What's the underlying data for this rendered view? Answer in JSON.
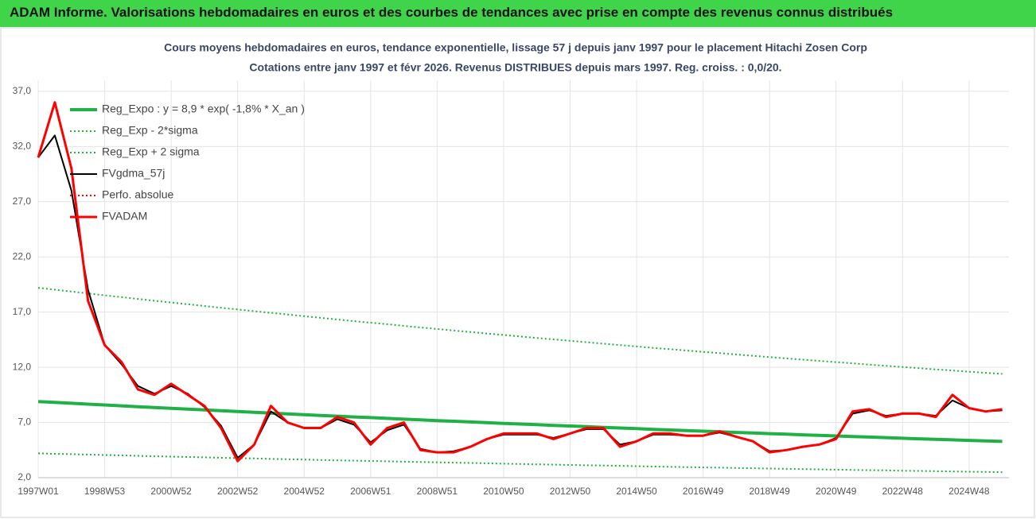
{
  "header": {
    "title": "ADAM Informe. Valorisations hebdomadaires en euros et des courbes de tendances avec prise en compte des revenus connus distribués"
  },
  "chart_data": {
    "type": "line",
    "title": "Cours moyens hebdomadaires en euros, tendance exponentielle, lissage 57 j depuis janv 1997  pour le placement Hitachi Zosen Corp",
    "subtitle": "Cotations entre janv 1997 et févr 2026. Revenus DISTRIBUES depuis mars 1997. Reg. croiss. : 0,0/20.",
    "x": [
      1997,
      1997.5,
      1998,
      1998.5,
      1999,
      1999.5,
      2000,
      2000.5,
      2001,
      2001.5,
      2002,
      2002.5,
      2003,
      2003.5,
      2004,
      2004.5,
      2005,
      2005.5,
      2006,
      2006.5,
      2007,
      2007.5,
      2008,
      2008.5,
      2009,
      2009.5,
      2010,
      2010.5,
      2011,
      2011.5,
      2012,
      2012.5,
      2013,
      2013.5,
      2014,
      2014.5,
      2015,
      2015.5,
      2016,
      2016.5,
      2017,
      2017.5,
      2018,
      2018.5,
      2019,
      2019.5,
      2020,
      2020.5,
      2021,
      2021.5,
      2022,
      2022.5,
      2023,
      2023.5,
      2024,
      2024.5,
      2025,
      2025.5,
      2026
    ],
    "xlim": [
      1997,
      2026.2
    ],
    "xticks": [
      {
        "value": 1997,
        "label": "1997W01"
      },
      {
        "value": 1999,
        "label": "1998W53"
      },
      {
        "value": 2001,
        "label": "2000W52"
      },
      {
        "value": 2003,
        "label": "2002W52"
      },
      {
        "value": 2005,
        "label": "2004W52"
      },
      {
        "value": 2007,
        "label": "2006W51"
      },
      {
        "value": 2009,
        "label": "2008W51"
      },
      {
        "value": 2011,
        "label": "2010W50"
      },
      {
        "value": 2013,
        "label": "2012W50"
      },
      {
        "value": 2015,
        "label": "2014W50"
      },
      {
        "value": 2017,
        "label": "2016W49"
      },
      {
        "value": 2019,
        "label": "2018W49"
      },
      {
        "value": 2021,
        "label": "2020W49"
      },
      {
        "value": 2023,
        "label": "2022W48"
      },
      {
        "value": 2025,
        "label": "2024W48"
      }
    ],
    "ylim": [
      2,
      38
    ],
    "yticks": [
      {
        "value": 2,
        "label": "2,0"
      },
      {
        "value": 7,
        "label": "7,0"
      },
      {
        "value": 12,
        "label": "12,0"
      },
      {
        "value": 17,
        "label": "17,0"
      },
      {
        "value": 22,
        "label": "22,0"
      },
      {
        "value": 27,
        "label": "27,0"
      },
      {
        "value": 32,
        "label": "32,0"
      },
      {
        "value": 37,
        "label": "37,0"
      }
    ],
    "grid": true,
    "legend": "upper left",
    "series": [
      {
        "name": "Reg_Expo : y = 8,9 * exp( -1,8% *  X_an )",
        "color": "#1fb145",
        "dash": "solid",
        "values": [
          8.9,
          8.82,
          8.74,
          8.66,
          8.59,
          8.51,
          8.43,
          8.36,
          8.28,
          8.21,
          8.14,
          8.06,
          7.99,
          7.92,
          7.85,
          7.78,
          7.71,
          7.64,
          7.57,
          7.5,
          7.44,
          7.37,
          7.3,
          7.24,
          7.17,
          7.11,
          7.05,
          6.98,
          6.92,
          6.86,
          6.8,
          6.74,
          6.68,
          6.62,
          6.56,
          6.5,
          6.44,
          6.38,
          6.32,
          6.27,
          6.21,
          6.16,
          6.1,
          6.05,
          5.99,
          5.94,
          5.88,
          5.83,
          5.78,
          5.73,
          5.68,
          5.63,
          5.57,
          5.52,
          5.48,
          5.43,
          5.38,
          5.33,
          5.28
        ]
      },
      {
        "name": "Reg_Exp - 2*sigma",
        "color": "#1fb145",
        "dash": "dotted",
        "values": [
          4.2,
          4.16,
          4.13,
          4.09,
          4.05,
          4.02,
          3.98,
          3.94,
          3.91,
          3.87,
          3.84,
          3.8,
          3.77,
          3.74,
          3.7,
          3.67,
          3.64,
          3.6,
          3.57,
          3.54,
          3.51,
          3.48,
          3.45,
          3.42,
          3.39,
          3.36,
          3.33,
          3.3,
          3.27,
          3.24,
          3.21,
          3.18,
          3.15,
          3.12,
          3.1,
          3.07,
          3.04,
          3.01,
          2.99,
          2.96,
          2.93,
          2.91,
          2.88,
          2.86,
          2.83,
          2.8,
          2.78,
          2.75,
          2.73,
          2.7,
          2.68,
          2.66,
          2.63,
          2.61,
          2.59,
          2.56,
          2.54,
          2.52,
          2.5
        ]
      },
      {
        "name": "Reg_Exp + 2 sigma",
        "color": "#1fb145",
        "dash": "dotted",
        "values": [
          19.2,
          19.03,
          18.86,
          18.69,
          18.52,
          18.36,
          18.19,
          18.03,
          17.87,
          17.71,
          17.55,
          17.39,
          17.24,
          17.08,
          16.93,
          16.78,
          16.63,
          16.48,
          16.33,
          16.18,
          16.04,
          15.9,
          15.75,
          15.61,
          15.47,
          15.33,
          15.2,
          15.06,
          14.93,
          14.79,
          14.66,
          14.53,
          14.4,
          14.27,
          14.14,
          14.01,
          13.89,
          13.76,
          13.64,
          13.52,
          13.4,
          13.28,
          13.16,
          13.04,
          12.92,
          12.81,
          12.69,
          12.58,
          12.47,
          12.36,
          12.24,
          12.13,
          12.03,
          11.92,
          11.81,
          11.71,
          11.6,
          11.5,
          11.4
        ]
      },
      {
        "name": "FVgdma_57j",
        "color": "#000000",
        "dash": "solid",
        "values": [
          31,
          33,
          28,
          19,
          14,
          12.3,
          10.3,
          9.6,
          10.3,
          9.6,
          8.4,
          6.7,
          3.8,
          5,
          8,
          7,
          6.5,
          6.5,
          7.3,
          6.8,
          5.2,
          6.3,
          6.8,
          4.6,
          4.3,
          4.4,
          4.8,
          5.5,
          5.9,
          5.9,
          5.9,
          5.6,
          6,
          6.4,
          6.4,
          5,
          5.3,
          5.9,
          5.9,
          5.8,
          5.8,
          6.1,
          5.7,
          5.3,
          4.4,
          4.5,
          4.8,
          5,
          5.6,
          7.8,
          8.1,
          7.6,
          7.8,
          7.8,
          7.6,
          9,
          8.3,
          8,
          8.1
        ]
      },
      {
        "name": "Perfo. absolue",
        "color": "#ff0000",
        "dash": "dotted",
        "values": [
          null,
          null,
          null,
          null,
          null,
          null,
          null,
          null,
          null,
          null,
          null,
          null,
          null,
          null,
          null,
          null,
          null,
          null,
          null,
          null,
          null,
          null,
          null,
          null,
          null,
          null,
          null,
          null,
          null,
          null,
          null,
          null,
          null,
          null,
          null,
          null,
          null,
          null,
          null,
          null,
          null,
          null,
          null,
          null,
          null,
          null,
          null,
          null,
          null,
          null,
          null,
          null,
          null,
          null,
          null,
          null,
          null,
          null,
          null
        ]
      },
      {
        "name": "FVADAM",
        "color": "#ff0000",
        "dash": "solid",
        "values": [
          31,
          36,
          30,
          18,
          14,
          12.5,
          10,
          9.5,
          10.5,
          9.5,
          8.5,
          6.5,
          3.5,
          5,
          8.5,
          7,
          6.5,
          6.5,
          7.5,
          7,
          5,
          6.5,
          7,
          4.5,
          4.3,
          4.3,
          4.8,
          5.5,
          6,
          6,
          6,
          5.5,
          6,
          6.5,
          6.5,
          4.8,
          5.3,
          6,
          6,
          5.8,
          5.8,
          6.2,
          5.7,
          5.3,
          4.3,
          4.5,
          4.8,
          5,
          5.5,
          8,
          8.2,
          7.5,
          7.8,
          7.8,
          7.5,
          9.5,
          8.3,
          8,
          8.2
        ]
      }
    ]
  }
}
